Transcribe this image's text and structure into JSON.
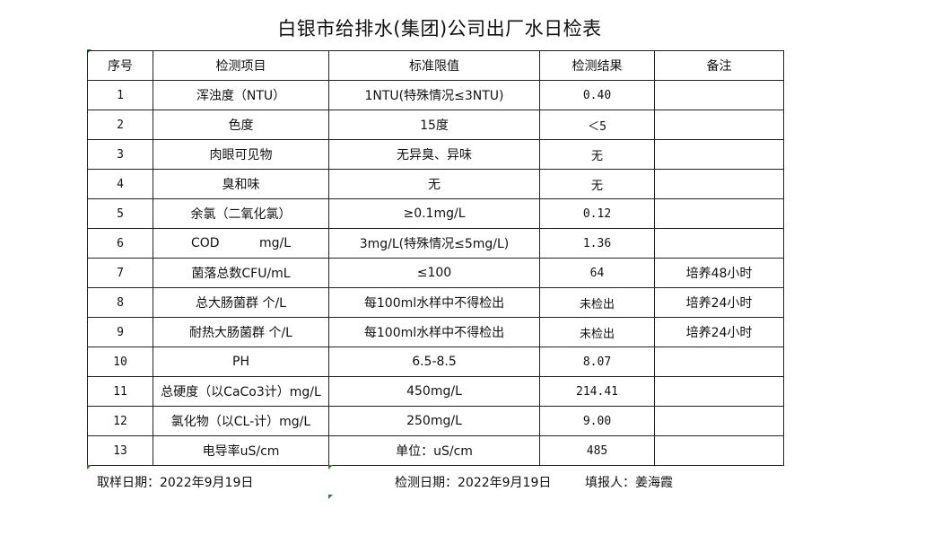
{
  "title": "白银市给排水(集团)公司出厂水日检表",
  "headers": [
    "序号",
    "检测项目",
    "标准限值",
    "检测结果",
    "备注"
  ],
  "rows": [
    [
      "1",
      "浑浊度（NTU）",
      "1NTU(特殊情况≤3NTU)",
      "0.40",
      ""
    ],
    [
      "2",
      "色度",
      "15度",
      "＜5",
      ""
    ],
    [
      "3",
      "肉眼可见物",
      "无异臭、异味",
      "无",
      ""
    ],
    [
      "4",
      "臭和味",
      "无",
      "无",
      ""
    ],
    [
      "5",
      "余氯（二氧化氯）",
      "≥0.1mg/L",
      "0.12",
      ""
    ],
    [
      "6",
      "COD          mg/L",
      "3mg/L(特殊情况≤5mg/L)",
      "1.36",
      ""
    ],
    [
      "7",
      "菌落总数CFU/mL",
      "≤100",
      "64",
      "培养48小时"
    ],
    [
      "8",
      "总大肠菌群 个/L",
      "每100ml水样中不得检出",
      "未检出",
      "培养24小时"
    ],
    [
      "9",
      "耐热大肠菌群 个/L",
      "每100ml水样中不得检出",
      "未检出",
      "培养24小时"
    ],
    [
      "10",
      "PH",
      "6.5-8.5",
      "8.07",
      ""
    ],
    [
      "11",
      "总硬度（以CaCo3计）mg/L",
      "450mg/L",
      "214.41",
      ""
    ],
    [
      "12",
      "氯化物（以CL-计）mg/L",
      "250mg/L",
      "9.00",
      ""
    ],
    [
      "13",
      "电导率uS/cm",
      "单位：uS/cm",
      "485",
      ""
    ]
  ],
  "footer": {
    "sample_date": "取样日期：2022年9月19日",
    "test_date": "检测日期：2022年9月19日",
    "reporter": "填报人：姜海霞"
  }
}
